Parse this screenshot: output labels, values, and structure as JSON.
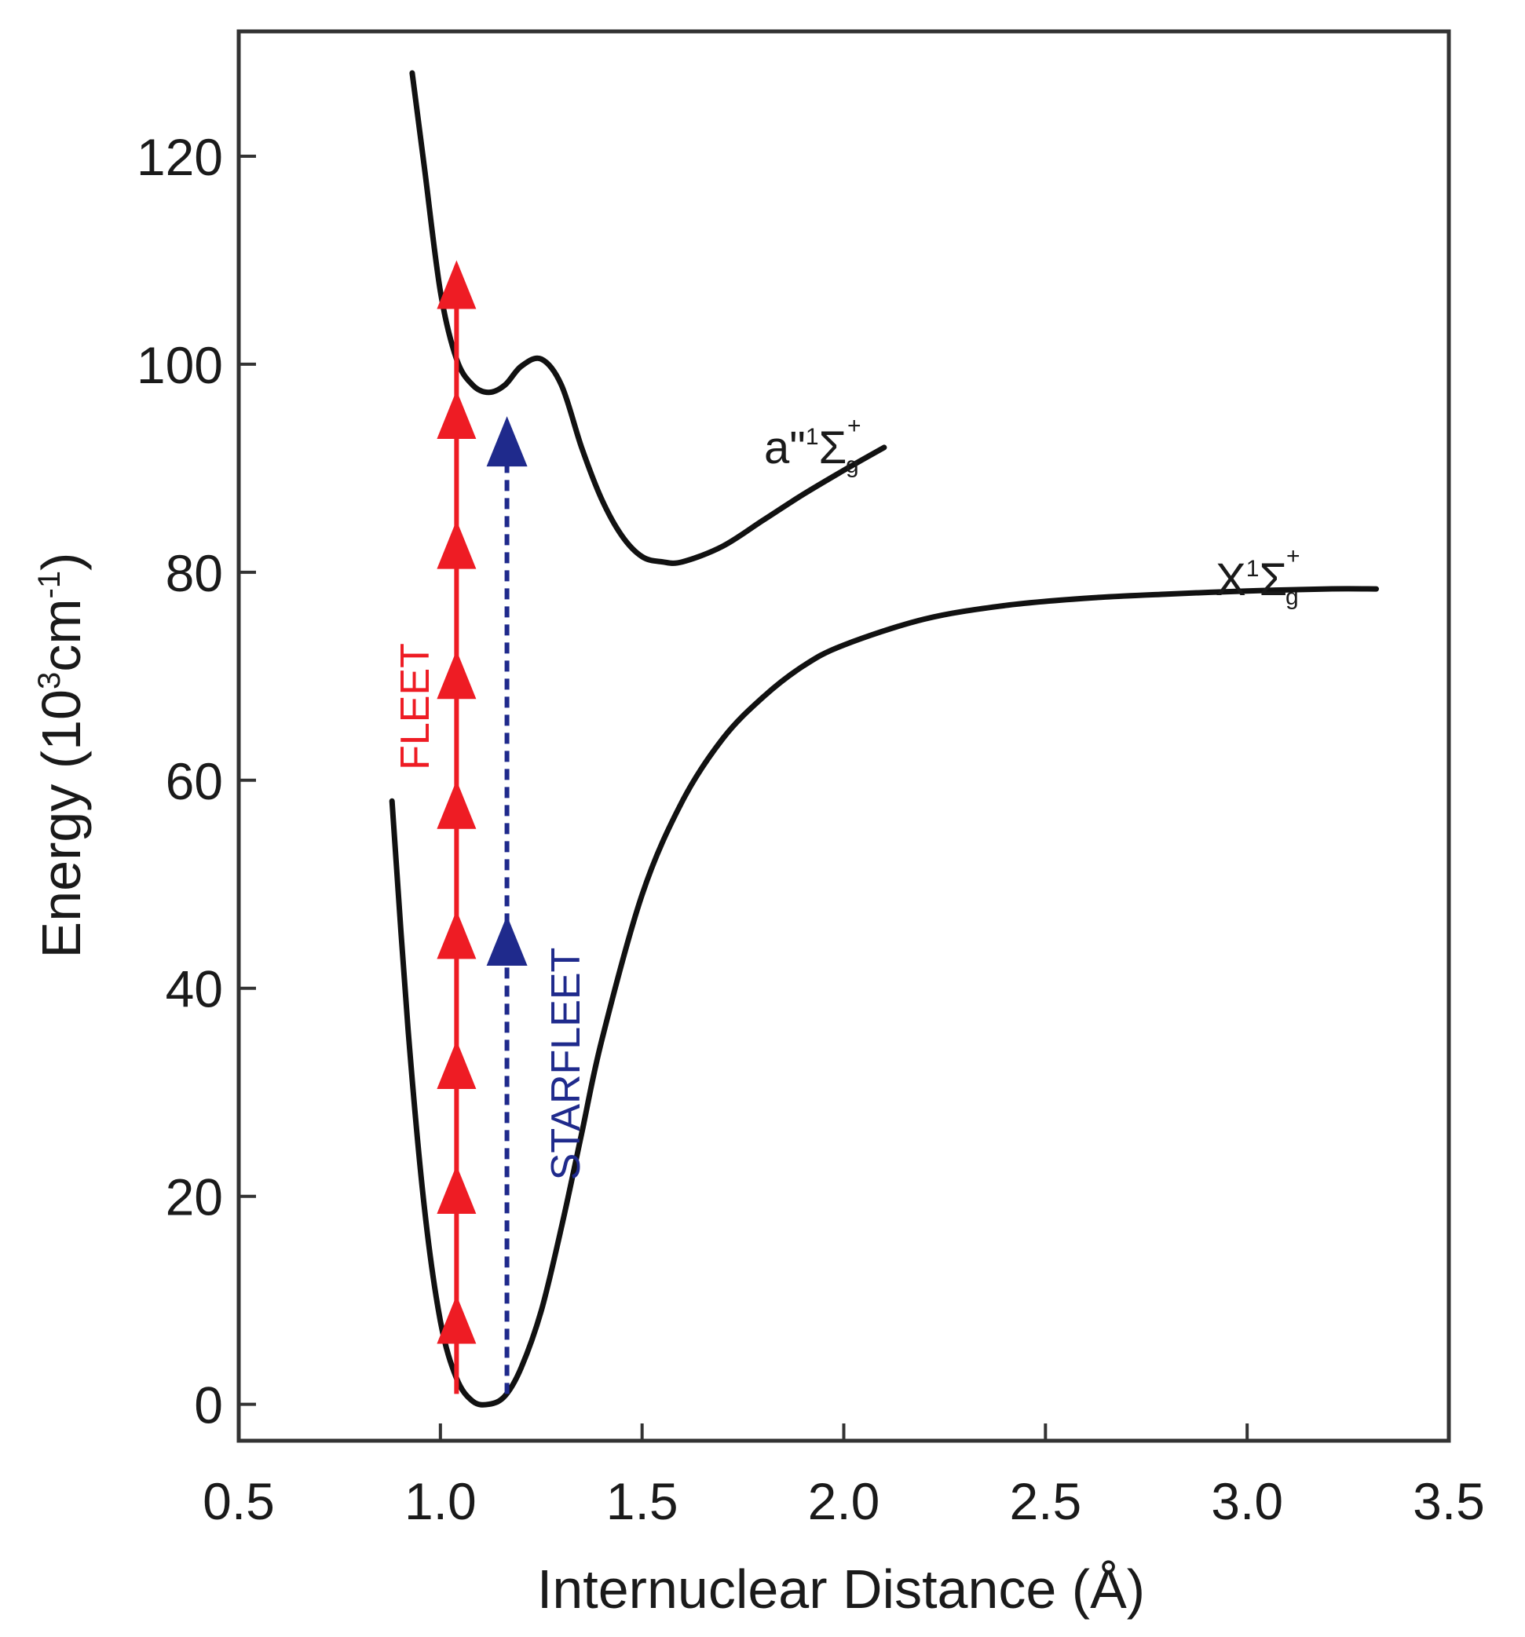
{
  "colors": {
    "fleet": "#ee1c24",
    "starfleet": "#1f2a8c",
    "curve": "#111111",
    "frame": "#333333"
  },
  "chart_data": {
    "type": "line",
    "xlabel": "Internuclear Distance (Å)",
    "ylabel_main": "Energy (10",
    "ylabel_sup": "3",
    "ylabel_mid": "cm",
    "ylabel_sup2": "-1",
    "ylabel_end": ")",
    "xlim": [
      0.5,
      3.5
    ],
    "ylim": [
      -3.5,
      132
    ],
    "x_ticks": [
      0.5,
      1.0,
      1.5,
      2.0,
      2.5,
      3.0,
      3.5
    ],
    "x_tick_labels": [
      "0.5",
      "1.0",
      "1.5",
      "2.0",
      "2.5",
      "3.0",
      "3.5"
    ],
    "y_ticks": [
      0,
      20,
      40,
      60,
      80,
      100,
      120
    ],
    "y_tick_labels": [
      "0",
      "20",
      "40",
      "60",
      "80",
      "100",
      "120"
    ],
    "grid": false,
    "series": [
      {
        "label_main": "X",
        "label_sup": "1",
        "label_sigma": "Σ",
        "label_sub": "g",
        "label_plus": "+",
        "x": [
          0.88,
          0.92,
          0.96,
          1.0,
          1.04,
          1.08,
          1.12,
          1.16,
          1.2,
          1.25,
          1.3,
          1.35,
          1.4,
          1.5,
          1.6,
          1.7,
          1.8,
          1.9,
          2.0,
          2.2,
          2.4,
          2.6,
          2.8,
          3.0,
          3.2,
          3.32
        ],
        "y": [
          58,
          36,
          19,
          8,
          2.5,
          0.3,
          0,
          0.8,
          3.5,
          9,
          17,
          26,
          35,
          49,
          58,
          64,
          68,
          71,
          73,
          75.5,
          76.8,
          77.5,
          77.9,
          78.2,
          78.4,
          78.4
        ]
      },
      {
        "label_main": "a\"",
        "label_sup": "1",
        "label_sigma": "Σ",
        "label_sub": "g",
        "label_plus": "+",
        "x": [
          0.93,
          0.96,
          1.0,
          1.04,
          1.08,
          1.12,
          1.16,
          1.2,
          1.25,
          1.3,
          1.35,
          1.4,
          1.45,
          1.5,
          1.55,
          1.6,
          1.7,
          1.8,
          1.9,
          2.0,
          2.1
        ],
        "y": [
          128,
          119,
          107,
          100.5,
          98,
          97.3,
          98,
          99.8,
          100.5,
          98,
          92,
          87,
          83.5,
          81.5,
          81,
          81,
          82.5,
          85,
          87.5,
          89.8,
          92
        ]
      }
    ],
    "fleet": {
      "label": "FLEET",
      "x": 1.04,
      "y_start": 1,
      "y_end": 111,
      "arrowheads_y": [
        10.5,
        23,
        35,
        47.5,
        60,
        72.5,
        85,
        97.5,
        110
      ]
    },
    "starfleet": {
      "label": "STARFLEET",
      "x": 1.165,
      "y_start": 1,
      "y_end": 95.5,
      "arrowheads_y": [
        47,
        95
      ]
    }
  }
}
